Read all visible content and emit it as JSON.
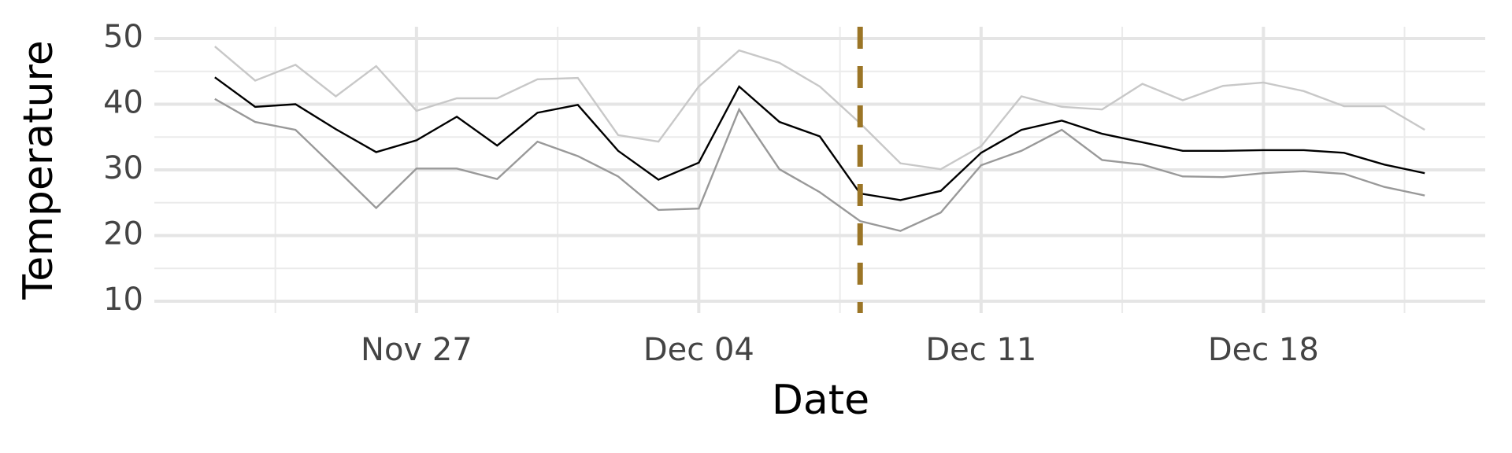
{
  "chart_data": {
    "type": "line",
    "x_label": "Date",
    "y_label": "Temperature",
    "x": [
      "Nov 22",
      "Nov 23",
      "Nov 24",
      "Nov 25",
      "Nov 26",
      "Nov 27",
      "Nov 28",
      "Nov 29",
      "Nov 30",
      "Dec 01",
      "Dec 02",
      "Dec 03",
      "Dec 04",
      "Dec 05",
      "Dec 06",
      "Dec 07",
      "Dec 08",
      "Dec 09",
      "Dec 10",
      "Dec 11",
      "Dec 12",
      "Dec 13",
      "Dec 14",
      "Dec 15",
      "Dec 16",
      "Dec 17",
      "Dec 18",
      "Dec 19",
      "Dec 20",
      "Dec 21",
      "Dec 22"
    ],
    "series": [
      {
        "color": "#c8c8c8",
        "values": [
          48.8,
          43.6,
          46.0,
          41.2,
          45.8,
          39.0,
          40.9,
          40.9,
          43.8,
          44.0,
          35.3,
          34.3,
          42.7,
          48.2,
          46.3,
          42.7,
          37.1,
          31.0,
          30.1,
          33.6,
          41.2,
          39.6,
          39.2,
          43.1,
          40.6,
          42.8,
          43.3,
          42.0,
          39.7,
          39.7,
          36.1
        ]
      },
      {
        "color": "#000000",
        "values": [
          44.1,
          39.6,
          40.0,
          36.2,
          32.7,
          34.5,
          38.1,
          33.7,
          38.7,
          39.9,
          32.9,
          28.5,
          31.1,
          42.7,
          37.3,
          35.1,
          26.4,
          25.4,
          26.8,
          32.6,
          36.1,
          37.5,
          35.5,
          34.2,
          32.9,
          32.9,
          33.0,
          33.0,
          32.6,
          30.8,
          29.5
        ]
      },
      {
        "color": "#999999",
        "values": [
          40.8,
          37.3,
          36.1,
          30.2,
          24.2,
          30.2,
          30.2,
          28.6,
          34.3,
          32.1,
          29.0,
          23.9,
          24.1,
          39.2,
          30.1,
          26.6,
          22.2,
          20.7,
          23.5,
          30.7,
          32.9,
          36.1,
          31.5,
          30.8,
          29.0,
          28.9,
          29.5,
          29.8,
          29.4,
          27.4,
          26.1
        ]
      }
    ],
    "xticks": [
      "Nov 27",
      "Dec 04",
      "Dec 11",
      "Dec 18"
    ],
    "ylim": [
      8.2,
      51.8
    ],
    "yticks": [
      10,
      20,
      30,
      40,
      50
    ],
    "grid": true,
    "vline": {
      "x": "Dec 08",
      "color": "#9b7526"
    }
  }
}
